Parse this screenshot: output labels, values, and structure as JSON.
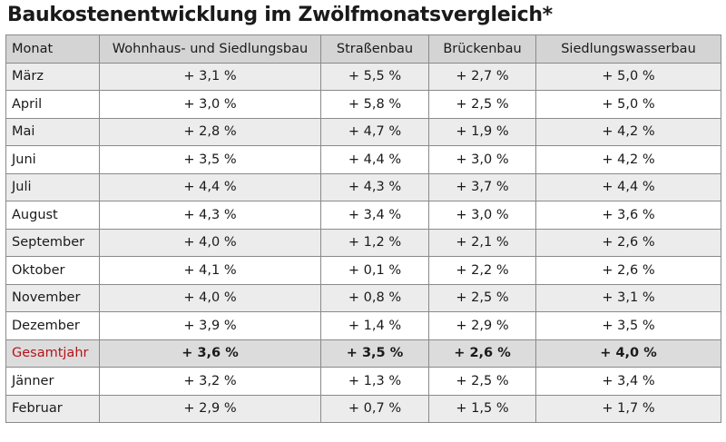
{
  "chart_data": {
    "type": "table",
    "title": "Baukostenentwicklung im Zwölfmonatsvergleich*",
    "columns": [
      "Monat",
      "Wohnhaus- und Siedlungsbau",
      "Straßenbau",
      "Brückenbau",
      "Siedlungswasserbau"
    ],
    "rows": [
      {
        "month": "März",
        "values": [
          "+ 3,1 %",
          "+ 5,5 %",
          "+ 2,7 %",
          "+ 5,0 %"
        ]
      },
      {
        "month": "April",
        "values": [
          "+ 3,0 %",
          "+ 5,8 %",
          "+ 2,5 %",
          "+ 5,0 %"
        ]
      },
      {
        "month": "Mai",
        "values": [
          "+ 2,8 %",
          "+ 4,7 %",
          "+ 1,9 %",
          "+ 4,2 %"
        ]
      },
      {
        "month": "Juni",
        "values": [
          "+ 3,5 %",
          "+ 4,4 %",
          "+ 3,0 %",
          "+ 4,2 %"
        ]
      },
      {
        "month": "Juli",
        "values": [
          "+ 4,4 %",
          "+ 4,3 %",
          "+ 3,7 %",
          "+ 4,4 %"
        ]
      },
      {
        "month": "August",
        "values": [
          "+ 4,3 %",
          "+ 3,4 %",
          "+ 3,0 %",
          "+ 3,6 %"
        ]
      },
      {
        "month": "September",
        "values": [
          "+ 4,0 %",
          "+ 1,2 %",
          "+ 2,1 %",
          "+ 2,6 %"
        ]
      },
      {
        "month": "Oktober",
        "values": [
          "+ 4,1 %",
          "+ 0,1 %",
          "+ 2,2 %",
          "+ 2,6 %"
        ]
      },
      {
        "month": "November",
        "values": [
          "+ 4,0 %",
          "+ 0,8 %",
          "+ 2,5 %",
          "+ 3,1 %"
        ]
      },
      {
        "month": "Dezember",
        "values": [
          "+ 3,9 %",
          "+ 1,4 %",
          "+ 2,9 %",
          "+ 3,5 %"
        ]
      },
      {
        "month": "Gesamtjahr",
        "values": [
          "+ 3,6 %",
          "+ 3,5 %",
          "+ 2,6 %",
          "+ 4,0 %"
        ],
        "highlight": true
      },
      {
        "month": "Jänner",
        "values": [
          "+ 3,2 %",
          "+ 1,3 %",
          "+ 2,5 %",
          "+ 3,4 %"
        ]
      },
      {
        "month": "Februar",
        "values": [
          "+ 2,9 %",
          "+ 0,7 %",
          "+ 1,5 %",
          "+ 1,7 %"
        ]
      }
    ],
    "colors": {
      "header_bg": "#d4d4d4",
      "alt_row_bg": "#ececec",
      "total_row_bg": "#dcdcdc",
      "highlight_text": "#b5141c"
    }
  }
}
